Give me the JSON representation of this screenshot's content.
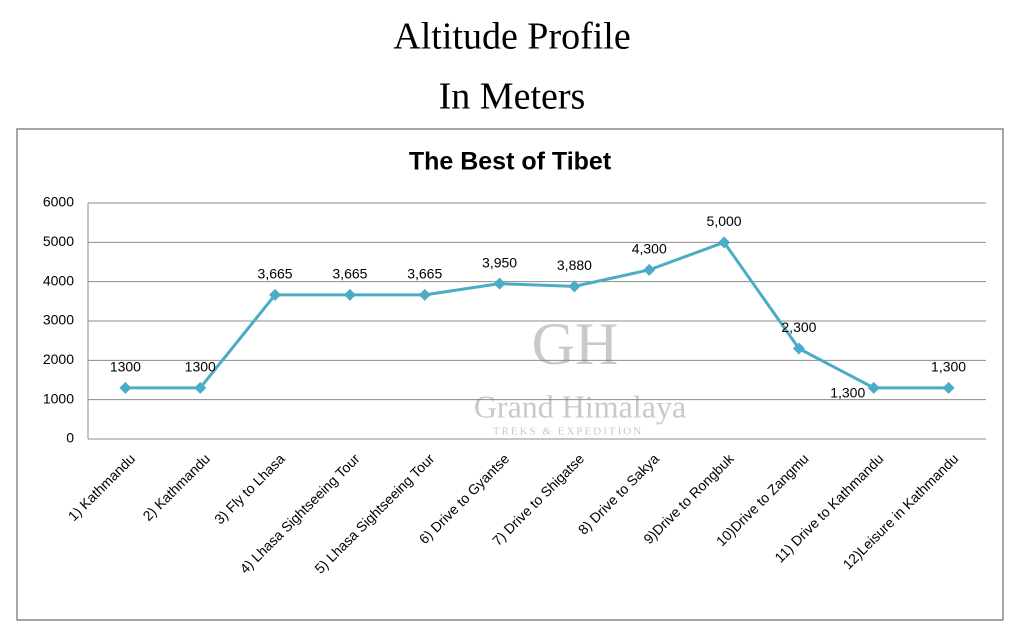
{
  "chart_data": {
    "type": "line",
    "heading": [
      "Altitude Profile",
      "In Meters"
    ],
    "title": "The Best of Tibet",
    "categories": [
      "1) Kathmandu",
      "2) Kathmandu",
      "3) Fly to Lhasa",
      "4) Lhasa Sightseeing Tour",
      "5) Lhasa Sightseeing Tour",
      "6) Drive to Gyantse",
      "7) Drive to Shigatse",
      "8) Drive to Sakya",
      "9)Drive to Rongbuk",
      "10)Drive to Zangmu",
      "11) Drive to Kathmandu",
      "12)Leisure in Kathmandu"
    ],
    "values": [
      1300,
      1300,
      3665,
      3665,
      3665,
      3950,
      3880,
      4300,
      5000,
      2300,
      1300,
      1300
    ],
    "value_labels": [
      "1300",
      "1300",
      "3,665",
      "3,665",
      "3,665",
      "3,950",
      "3,880",
      "4,300",
      "5,000",
      "2,300",
      "1,300",
      "1,300"
    ],
    "color": "#4bacc6",
    "ylim": [
      0,
      6000
    ],
    "yticks": [
      0,
      1000,
      2000,
      3000,
      4000,
      5000,
      6000
    ],
    "grid": true,
    "watermark": [
      "GH",
      "Grand Himalaya",
      "TREKS & EXPEDITION"
    ]
  }
}
